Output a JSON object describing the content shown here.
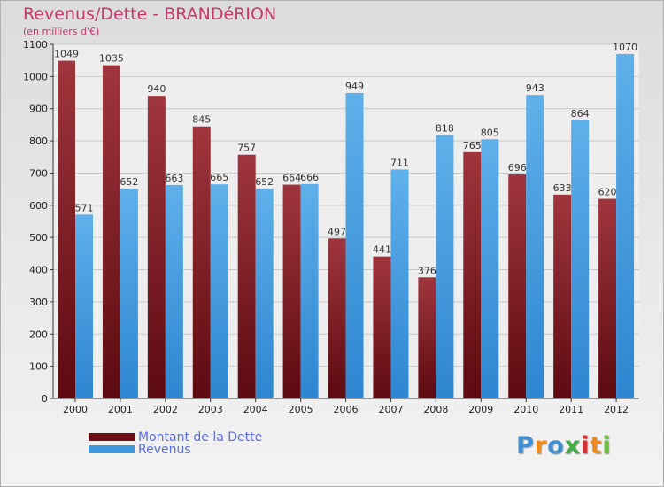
{
  "header": {
    "title": "Revenus/Dette - BRANDéRION",
    "subtitle": "(en milliers d'€)"
  },
  "legend": [
    {
      "label": "Montant de la Dette",
      "color": "#6e0f15"
    },
    {
      "label": "Revenus",
      "color": "#3f97dc"
    }
  ],
  "logo": {
    "text": "Proxiti",
    "letter_colors": [
      "#3f8fd6",
      "#f08a1c",
      "#3f8fd6",
      "#3fae3f",
      "#d62f2f",
      "#f08a1c",
      "#6fbf3f"
    ]
  },
  "colors": {
    "title": "#c8376e",
    "dette_dark": "#5c0a10",
    "dette_light": "#a0353d",
    "revenus_dark": "#2e86d0",
    "revenus_light": "#5fb0ea"
  },
  "chart_data": {
    "type": "bar",
    "categories": [
      "2000",
      "2001",
      "2002",
      "2003",
      "2004",
      "2005",
      "2006",
      "2007",
      "2008",
      "2009",
      "2010",
      "2011",
      "2012"
    ],
    "series": [
      {
        "name": "Montant de la Dette",
        "values": [
          1049,
          1035,
          940,
          845,
          757,
          664,
          497,
          441,
          376,
          765,
          696,
          633,
          620
        ]
      },
      {
        "name": "Revenus",
        "values": [
          571,
          652,
          663,
          665,
          652,
          666,
          949,
          711,
          818,
          805,
          943,
          864,
          1070
        ]
      }
    ],
    "yticks": [
      0,
      100,
      200,
      300,
      400,
      500,
      600,
      700,
      800,
      900,
      1000,
      1100
    ],
    "ylim": [
      0,
      1100
    ],
    "grid": true
  }
}
